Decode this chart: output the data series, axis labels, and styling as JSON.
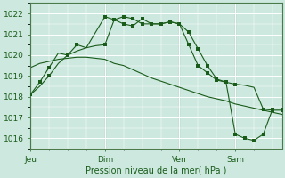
{
  "title": "Pression niveau de la mer( hPa )",
  "background_color": "#cce8df",
  "line_color": "#1a5c1a",
  "ylim": [
    1015.5,
    1022.5
  ],
  "yticks": [
    1016,
    1017,
    1018,
    1019,
    1020,
    1021,
    1022
  ],
  "day_labels": [
    "Jeu",
    "Dim",
    "Ven",
    "Sam"
  ],
  "day_positions": [
    0,
    8,
    16,
    22
  ],
  "xlim": [
    0,
    27
  ],
  "line1_x": [
    0,
    1,
    2,
    3,
    4,
    5,
    6,
    7,
    8,
    9,
    10,
    11,
    12,
    13,
    14,
    15,
    16,
    17,
    18,
    19,
    20,
    21,
    22,
    23,
    24,
    25,
    26,
    27
  ],
  "line1_y": [
    1019.4,
    1019.6,
    1019.7,
    1019.8,
    1019.85,
    1019.9,
    1019.9,
    1019.85,
    1019.8,
    1019.6,
    1019.5,
    1019.3,
    1019.1,
    1018.9,
    1018.75,
    1018.6,
    1018.45,
    1018.3,
    1018.15,
    1018.0,
    1017.9,
    1017.8,
    1017.65,
    1017.55,
    1017.45,
    1017.35,
    1017.25,
    1017.15
  ],
  "line2_x": [
    0,
    1,
    2,
    3,
    4,
    5,
    6,
    7,
    8,
    9,
    10,
    11,
    12,
    13,
    14,
    15,
    16,
    17,
    18,
    19,
    20,
    21,
    22,
    23,
    24,
    25,
    26,
    27
  ],
  "line2_y": [
    1018.1,
    1018.5,
    1019.0,
    1019.6,
    1020.0,
    1020.2,
    1020.35,
    1020.45,
    1020.5,
    1021.7,
    1021.85,
    1021.75,
    1021.5,
    1021.5,
    1021.5,
    1021.6,
    1021.5,
    1021.1,
    1020.3,
    1019.5,
    1018.85,
    1018.7,
    1018.6,
    1018.55,
    1018.45,
    1017.4,
    1017.35,
    1017.35
  ],
  "line2_markers_x": [
    0,
    2,
    4,
    8,
    9,
    10,
    11,
    12,
    13,
    14,
    15,
    16,
    17,
    18,
    19,
    20,
    21,
    22,
    25,
    26,
    27
  ],
  "line2_markers_y": [
    1018.1,
    1019.0,
    1020.0,
    1020.5,
    1021.7,
    1021.85,
    1021.75,
    1021.5,
    1021.5,
    1021.5,
    1021.6,
    1021.5,
    1021.1,
    1020.3,
    1019.5,
    1018.85,
    1018.7,
    1018.6,
    1017.4,
    1017.35,
    1017.35
  ],
  "line3_x": [
    0,
    1,
    2,
    3,
    4,
    5,
    6,
    8,
    9,
    10,
    11,
    12,
    13,
    14,
    15,
    16,
    17,
    18,
    19,
    20,
    21,
    22,
    23,
    24,
    25,
    26,
    27
  ],
  "line3_y": [
    1018.1,
    1018.7,
    1019.4,
    1020.1,
    1020.0,
    1020.5,
    1020.35,
    1021.85,
    1021.7,
    1021.5,
    1021.4,
    1021.75,
    1021.5,
    1021.5,
    1021.6,
    1021.5,
    1020.5,
    1019.5,
    1019.15,
    1018.8,
    1018.7,
    1016.2,
    1016.0,
    1015.9,
    1016.2,
    1017.4,
    1017.4
  ],
  "line3_markers_x": [
    0,
    1,
    2,
    4,
    5,
    8,
    9,
    10,
    11,
    12,
    13,
    14,
    15,
    16,
    17,
    18,
    19,
    20,
    21,
    22,
    23,
    24,
    25,
    26,
    27
  ],
  "line3_markers_y": [
    1018.1,
    1018.7,
    1019.4,
    1020.0,
    1020.5,
    1021.85,
    1021.7,
    1021.5,
    1021.4,
    1021.75,
    1021.5,
    1021.5,
    1021.6,
    1021.5,
    1020.5,
    1019.5,
    1019.15,
    1018.8,
    1018.7,
    1016.2,
    1016.0,
    1015.9,
    1016.2,
    1017.4,
    1017.4
  ]
}
